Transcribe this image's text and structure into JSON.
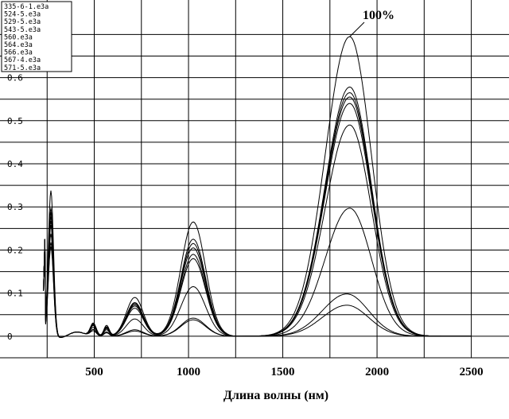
{
  "chart_data": {
    "type": "line",
    "xlabel": "Длина волны (нм)",
    "ylabel": "",
    "xlim": [
      0,
      2700
    ],
    "ylim": [
      -0.05,
      0.78
    ],
    "x_ticks": [
      500,
      1000,
      1500,
      2000,
      2500
    ],
    "x_tick_labels": [
      "500",
      "1000",
      "1500",
      "2000",
      "2500"
    ],
    "y_ticks": [
      0,
      0.1,
      0.2,
      0.3,
      0.4,
      0.5,
      0.6
    ],
    "y_tick_labels": [
      "0",
      "0.1",
      "0.2",
      "0.3",
      "0.4",
      "0.5",
      "0.6"
    ],
    "grid": true,
    "legend_position": "top-left",
    "annotation": "100%",
    "annotation_target": [
      1855,
      0.695
    ],
    "series": [
      {
        "name": "335-6-1.e3a",
        "peaks": [
          [
            270,
            0.34
          ],
          [
            495,
            0.03
          ],
          [
            565,
            0.025
          ],
          [
            715,
            0.09
          ],
          [
            1025,
            0.265
          ],
          [
            1855,
            0.695
          ]
        ]
      },
      {
        "name": "524-5.e3a",
        "peaks": [
          [
            270,
            0.3
          ],
          [
            495,
            0.028
          ],
          [
            565,
            0.022
          ],
          [
            715,
            0.078
          ],
          [
            1025,
            0.225
          ],
          [
            1855,
            0.578
          ]
        ]
      },
      {
        "name": "529-5.e3a",
        "peaks": [
          [
            270,
            0.29
          ],
          [
            495,
            0.027
          ],
          [
            565,
            0.021
          ],
          [
            715,
            0.076
          ],
          [
            1025,
            0.215
          ],
          [
            1855,
            0.565
          ]
        ]
      },
      {
        "name": "543-5.e3a",
        "peaks": [
          [
            270,
            0.28
          ],
          [
            495,
            0.026
          ],
          [
            565,
            0.02
          ],
          [
            715,
            0.073
          ],
          [
            1025,
            0.205
          ],
          [
            1855,
            0.555
          ]
        ]
      },
      {
        "name": "560.e3a",
        "peaks": [
          [
            270,
            0.27
          ],
          [
            495,
            0.025
          ],
          [
            565,
            0.019
          ],
          [
            715,
            0.07
          ],
          [
            1025,
            0.19
          ],
          [
            1855,
            0.54
          ]
        ]
      },
      {
        "name": "564.e3a",
        "peaks": [
          [
            270,
            0.26
          ],
          [
            495,
            0.024
          ],
          [
            565,
            0.018
          ],
          [
            715,
            0.065
          ],
          [
            1025,
            0.18
          ],
          [
            1855,
            0.49
          ]
        ]
      },
      {
        "name": "566.e3a",
        "peaks": [
          [
            270,
            0.24
          ],
          [
            495,
            0.02
          ],
          [
            565,
            0.015
          ],
          [
            715,
            0.04
          ],
          [
            1025,
            0.115
          ],
          [
            1855,
            0.297
          ]
        ]
      },
      {
        "name": "567-4.e3a",
        "peaks": [
          [
            270,
            0.22
          ],
          [
            495,
            0.015
          ],
          [
            565,
            0.01
          ],
          [
            715,
            0.015
          ],
          [
            1025,
            0.042
          ],
          [
            1840,
            0.098
          ]
        ]
      },
      {
        "name": "571-5.e3a",
        "peaks": [
          [
            270,
            0.21
          ],
          [
            495,
            0.012
          ],
          [
            565,
            0.008
          ],
          [
            715,
            0.012
          ],
          [
            1025,
            0.038
          ],
          [
            1840,
            0.072
          ]
        ]
      }
    ]
  }
}
